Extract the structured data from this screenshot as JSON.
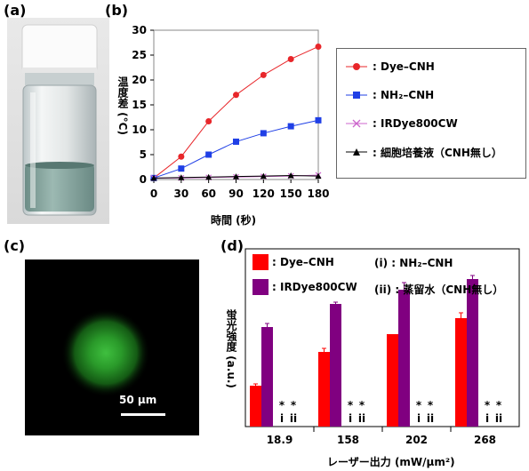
{
  "panels": {
    "a": "(a)",
    "b": "(b)",
    "c": "(c)",
    "d": "(d)"
  },
  "panel_c": {
    "scalebar_label": "50 µm"
  },
  "colors": {
    "dye_cnh": "#e8262a",
    "nh2_cnh": "#1f3fe6",
    "irdye": "#cc66cc",
    "medium": "#000000",
    "bar_red": "#ff0000",
    "bar_purple": "#800080"
  },
  "chart_data": [
    {
      "type": "line",
      "ylabel": "温度差 (°C)",
      "xlabel": "時間 (秒)",
      "x": [
        0,
        30,
        60,
        90,
        120,
        150,
        180
      ],
      "xlim": [
        0,
        180
      ],
      "ylim": [
        0,
        30
      ],
      "yticks": [
        0,
        5,
        10,
        15,
        20,
        25,
        30
      ],
      "legend_position": "right",
      "series": [
        {
          "name": ": Dye–CNH",
          "marker": "circle",
          "values": [
            0.3,
            4.6,
            11.7,
            17.0,
            21.0,
            24.2,
            26.7
          ]
        },
        {
          "name": ": NH₂–CNH",
          "marker": "square",
          "values": [
            0.3,
            2.2,
            5.0,
            7.6,
            9.3,
            10.7,
            11.9
          ]
        },
        {
          "name": ": IRDye800CW",
          "marker": "x",
          "values": [
            0.3,
            0.3,
            0.4,
            0.5,
            0.6,
            0.7,
            0.9
          ]
        },
        {
          "name": ": 細胞培養液（CNH無し）",
          "marker": "triangle",
          "values": [
            0.3,
            0.4,
            0.5,
            0.6,
            0.7,
            0.8,
            0.7
          ]
        }
      ]
    },
    {
      "type": "bar",
      "ylabel": "蛍光強度 (a.u.)",
      "xlabel": "レーザー出力 (mW/µm²)",
      "categories": [
        "18.9",
        "158",
        "202",
        "268"
      ],
      "ylim": [
        0,
        1
      ],
      "series": [
        {
          "name": ": Dye–CNH",
          "values": [
            0.23,
            0.42,
            0.52,
            0.61
          ],
          "errors": [
            0.01,
            0.02,
            0.0,
            0.03
          ]
        },
        {
          "name": ": IRDye800CW",
          "values": [
            0.56,
            0.69,
            0.77,
            0.83
          ],
          "errors": [
            0.02,
            0.01,
            0.04,
            0.02
          ]
        }
      ],
      "legend_extra": [
        "(i) : NH₂–CNH",
        "(ii) : 蒸留水（CNH無し）"
      ],
      "markers": {
        "asterisk": "*",
        "labels": [
          "i",
          "ii"
        ]
      }
    }
  ]
}
